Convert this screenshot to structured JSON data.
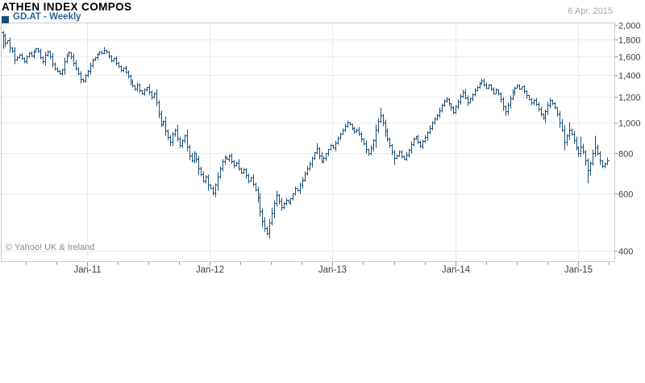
{
  "header": {
    "title": "ATHEN INDEX COMPOS",
    "legend_label": "GD.AT - Weekly",
    "date": "6 Apr, 2015"
  },
  "colors": {
    "bar": "#1a4f7a",
    "legend_swatch": "#1a4f7a",
    "legend_text": "#2a6496",
    "grid": "#e8ebf3",
    "border": "#c6cad2",
    "tick": "#999999",
    "axis_text": "#3c3c3c",
    "date_text": "#a6a6a6",
    "copyright_text": "#8a8a8a"
  },
  "chart_data": {
    "type": "ohlc",
    "title": "ATHEN INDEX COMPOS",
    "symbol": "GD.AT",
    "interval": "Weekly",
    "as_of": "6 Apr, 2015",
    "copyright": "© Yahoo! UK & Ireland",
    "scale": "log",
    "legend_position": "top-left",
    "grid": true,
    "x_axis": {
      "labels": [
        "Jan-11",
        "Jan-12",
        "Jan-13",
        "Jan-14",
        "Jan-15"
      ],
      "minor_tick_interval": "quarterly",
      "start": "May 2010",
      "end": "Apr 2015"
    },
    "y_axis": {
      "side": "right",
      "labels": [
        "2,000",
        "1,800",
        "1,600",
        "1,400",
        "1,200",
        "1,000",
        "800",
        "600",
        "400"
      ],
      "values": [
        2000,
        1800,
        1600,
        1400,
        1200,
        1000,
        800,
        600,
        400
      ],
      "range": [
        380,
        2040
      ]
    },
    "first_open": 1900,
    "closes": [
      1855,
      1760,
      1790,
      1700,
      1660,
      1560,
      1590,
      1620,
      1580,
      1545,
      1600,
      1640,
      1610,
      1655,
      1690,
      1660,
      1590,
      1545,
      1615,
      1650,
      1600,
      1520,
      1470,
      1445,
      1420,
      1460,
      1545,
      1610,
      1645,
      1600,
      1530,
      1465,
      1420,
      1360,
      1345,
      1400,
      1440,
      1500,
      1560,
      1590,
      1630,
      1655,
      1640,
      1675,
      1650,
      1605,
      1555,
      1580,
      1530,
      1490,
      1450,
      1475,
      1430,
      1390,
      1340,
      1300,
      1270,
      1310,
      1255,
      1230,
      1260,
      1285,
      1240,
      1200,
      1225,
      1150,
      1060,
      985,
      1010,
      940,
      900,
      870,
      920,
      950,
      890,
      850,
      880,
      910,
      840,
      790,
      760,
      800,
      770,
      720,
      690,
      660,
      680,
      640,
      625,
      605,
      640,
      680,
      720,
      755,
      780,
      770,
      790,
      755,
      735,
      750,
      720,
      700,
      715,
      685,
      660,
      675,
      645,
      620,
      585,
      530,
      495,
      470,
      455,
      490,
      525,
      560,
      595,
      570,
      545,
      560,
      575,
      565,
      580,
      600,
      625,
      615,
      640,
      665,
      695,
      720,
      745,
      775,
      805,
      830,
      790,
      755,
      775,
      800,
      825,
      850,
      835,
      865,
      895,
      920,
      950,
      975,
      995,
      985,
      960,
      935,
      950,
      920,
      890,
      860,
      825,
      800,
      835,
      880,
      950,
      1010,
      1050,
      1000,
      940,
      890,
      850,
      810,
      775,
      790,
      810,
      785,
      770,
      795,
      820,
      855,
      890,
      905,
      870,
      845,
      875,
      900,
      930,
      960,
      995,
      1025,
      1050,
      1090,
      1130,
      1165,
      1180,
      1145,
      1110,
      1075,
      1120,
      1160,
      1205,
      1240,
      1190,
      1150,
      1185,
      1220,
      1255,
      1285,
      1320,
      1345,
      1310,
      1280,
      1305,
      1270,
      1230,
      1260,
      1225,
      1180,
      1120,
      1080,
      1130,
      1185,
      1240,
      1280,
      1300,
      1270,
      1290,
      1250,
      1210,
      1180,
      1150,
      1175,
      1140,
      1100,
      1060,
      1030,
      1080,
      1130,
      1170,
      1145,
      1110,
      1060,
      1000,
      950,
      870,
      910,
      950,
      920,
      880,
      835,
      800,
      840,
      810,
      760,
      710,
      750,
      800,
      835,
      800,
      760,
      730,
      745,
      760
    ],
    "spikes": [
      {
        "i": 0,
        "high": 1920,
        "low": 1690
      },
      {
        "i": 33,
        "low": 1320
      },
      {
        "i": 43,
        "high": 1712
      },
      {
        "i": 71,
        "low": 845
      },
      {
        "i": 112,
        "low": 446
      },
      {
        "i": 116,
        "high": 616
      },
      {
        "i": 133,
        "high": 862
      },
      {
        "i": 146,
        "high": 1016
      },
      {
        "i": 155,
        "low": 788
      },
      {
        "i": 160,
        "high": 1110
      },
      {
        "i": 166,
        "low": 740
      },
      {
        "i": 188,
        "high": 1196
      },
      {
        "i": 195,
        "high": 1262
      },
      {
        "i": 203,
        "high": 1372
      },
      {
        "i": 213,
        "low": 1048
      },
      {
        "i": 229,
        "low": 1018
      },
      {
        "i": 238,
        "low": 820
      },
      {
        "i": 240,
        "high": 1002
      },
      {
        "i": 245,
        "high": 906
      },
      {
        "i": 248,
        "low": 650
      },
      {
        "i": 251,
        "high": 912
      },
      {
        "i": 256,
        "high": 780
      }
    ]
  }
}
